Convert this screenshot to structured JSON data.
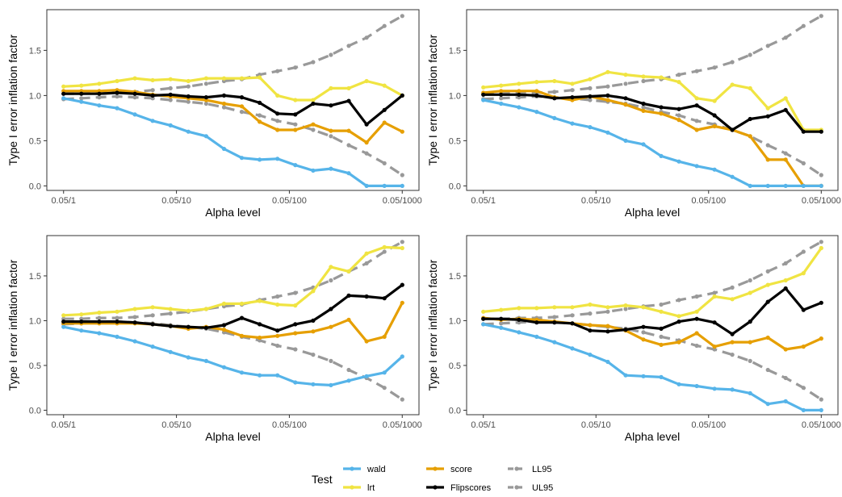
{
  "chart_data": {
    "type": "line",
    "x_tick_labels": [
      "0.05/1",
      "0.05/10",
      "0.05/100",
      "0.05/1000"
    ],
    "x_log10_divisor_range": [
      0,
      3
    ],
    "xlabel": "Alpha level",
    "ylabel": "Type I error inflation factor",
    "y_ticks": [
      "0.0",
      "0.5",
      "1.0",
      "1.5"
    ],
    "ylim": [
      -0.05,
      1.95
    ],
    "grid": false,
    "legend": {
      "title": "Test",
      "placement": "bottom",
      "entries": [
        {
          "key": "wald",
          "label": "wald",
          "color": "#56B4E9",
          "style": "solid"
        },
        {
          "key": "lrt",
          "label": "lrt",
          "color": "#F0E442",
          "style": "solid"
        },
        {
          "key": "score",
          "label": "score",
          "color": "#E69F00",
          "style": "solid"
        },
        {
          "key": "flip",
          "label": "Flipscores",
          "color": "#000000",
          "style": "solid"
        },
        {
          "key": "ll95",
          "label": "LL95",
          "color": "#999999",
          "style": "dashed"
        },
        {
          "key": "ul95",
          "label": "UL95",
          "color": "#999999",
          "style": "dashed"
        }
      ]
    },
    "panels": [
      {
        "series": {
          "wald": [
            0.97,
            0.93,
            0.89,
            0.86,
            0.79,
            0.72,
            0.67,
            0.6,
            0.55,
            0.41,
            0.31,
            0.29,
            0.3,
            0.23,
            0.17,
            0.19,
            0.14,
            0.0,
            0.0,
            0.0
          ],
          "lrt": [
            1.1,
            1.11,
            1.13,
            1.16,
            1.19,
            1.17,
            1.18,
            1.16,
            1.19,
            1.19,
            1.19,
            1.2,
            1.0,
            0.95,
            0.95,
            1.08,
            1.08,
            1.16,
            1.11,
            1.0
          ],
          "score": [
            1.05,
            1.05,
            1.05,
            1.06,
            1.04,
            1.01,
            0.99,
            0.97,
            0.95,
            0.91,
            0.88,
            0.71,
            0.62,
            0.62,
            0.68,
            0.61,
            0.61,
            0.48,
            0.7,
            0.6
          ],
          "flip": [
            1.02,
            1.02,
            1.02,
            1.03,
            1.02,
            1.0,
            1.01,
            0.99,
            0.98,
            1.0,
            0.98,
            0.92,
            0.8,
            0.79,
            0.91,
            0.89,
            0.94,
            0.68,
            0.84,
            1.0
          ],
          "ll95": [
            0.96,
            0.97,
            0.98,
            0.99,
            0.98,
            0.97,
            0.95,
            0.93,
            0.91,
            0.87,
            0.82,
            0.78,
            0.72,
            0.68,
            0.62,
            0.55,
            0.45,
            0.36,
            0.25,
            0.12
          ],
          "ul95": [
            1.02,
            1.02,
            1.03,
            1.03,
            1.04,
            1.06,
            1.08,
            1.1,
            1.13,
            1.16,
            1.18,
            1.23,
            1.27,
            1.31,
            1.37,
            1.45,
            1.55,
            1.64,
            1.77,
            1.88
          ]
        }
      },
      {
        "series": {
          "wald": [
            0.95,
            0.91,
            0.87,
            0.82,
            0.75,
            0.69,
            0.65,
            0.59,
            0.5,
            0.46,
            0.33,
            0.27,
            0.22,
            0.18,
            0.1,
            0.0,
            0.0,
            0.0,
            0.0,
            0.0
          ],
          "lrt": [
            1.09,
            1.11,
            1.13,
            1.15,
            1.16,
            1.13,
            1.18,
            1.26,
            1.23,
            1.21,
            1.2,
            1.15,
            0.97,
            0.94,
            1.12,
            1.08,
            0.86,
            0.97,
            0.62,
            0.62
          ],
          "score": [
            1.03,
            1.05,
            1.05,
            1.05,
            0.98,
            0.95,
            0.99,
            0.95,
            0.9,
            0.83,
            0.8,
            0.73,
            0.62,
            0.66,
            0.62,
            0.55,
            0.29,
            0.29,
            0.0,
            0.0
          ],
          "flip": [
            1.01,
            1.01,
            1.01,
            1.0,
            0.97,
            0.98,
            0.99,
            1.0,
            0.97,
            0.91,
            0.87,
            0.85,
            0.89,
            0.78,
            0.62,
            0.74,
            0.77,
            0.84,
            0.6,
            0.6
          ],
          "ll95": [
            0.96,
            0.97,
            0.98,
            0.99,
            0.98,
            0.97,
            0.95,
            0.93,
            0.91,
            0.87,
            0.82,
            0.78,
            0.72,
            0.68,
            0.62,
            0.55,
            0.45,
            0.36,
            0.25,
            0.12
          ],
          "ul95": [
            1.02,
            1.02,
            1.03,
            1.03,
            1.04,
            1.06,
            1.08,
            1.1,
            1.13,
            1.16,
            1.18,
            1.23,
            1.27,
            1.31,
            1.37,
            1.45,
            1.55,
            1.64,
            1.77,
            1.88
          ]
        }
      },
      {
        "series": {
          "wald": [
            0.93,
            0.89,
            0.86,
            0.82,
            0.77,
            0.71,
            0.65,
            0.59,
            0.55,
            0.48,
            0.42,
            0.39,
            0.39,
            0.31,
            0.29,
            0.28,
            0.33,
            0.38,
            0.42,
            0.6
          ],
          "lrt": [
            1.06,
            1.07,
            1.09,
            1.1,
            1.13,
            1.15,
            1.13,
            1.11,
            1.13,
            1.19,
            1.19,
            1.22,
            1.18,
            1.17,
            1.33,
            1.6,
            1.55,
            1.75,
            1.82,
            1.81
          ],
          "score": [
            0.97,
            0.97,
            0.97,
            0.97,
            0.97,
            0.96,
            0.94,
            0.91,
            0.93,
            0.9,
            0.83,
            0.81,
            0.83,
            0.86,
            0.88,
            0.93,
            1.01,
            0.77,
            0.82,
            1.2
          ],
          "flip": [
            0.99,
            0.99,
            0.99,
            0.99,
            0.98,
            0.96,
            0.94,
            0.93,
            0.92,
            0.95,
            1.03,
            0.96,
            0.89,
            0.96,
            1.0,
            1.13,
            1.28,
            1.27,
            1.25,
            1.4
          ],
          "ll95": [
            0.96,
            0.97,
            0.98,
            0.99,
            0.98,
            0.97,
            0.95,
            0.93,
            0.91,
            0.87,
            0.82,
            0.78,
            0.72,
            0.68,
            0.62,
            0.55,
            0.45,
            0.36,
            0.25,
            0.12
          ],
          "ul95": [
            1.02,
            1.02,
            1.03,
            1.03,
            1.04,
            1.06,
            1.08,
            1.1,
            1.13,
            1.16,
            1.18,
            1.23,
            1.27,
            1.31,
            1.37,
            1.45,
            1.55,
            1.64,
            1.77,
            1.88
          ]
        }
      },
      {
        "series": {
          "wald": [
            0.96,
            0.92,
            0.87,
            0.82,
            0.76,
            0.69,
            0.62,
            0.54,
            0.39,
            0.38,
            0.37,
            0.29,
            0.27,
            0.24,
            0.23,
            0.19,
            0.07,
            0.1,
            0.0,
            0.0
          ],
          "lrt": [
            1.1,
            1.12,
            1.14,
            1.14,
            1.15,
            1.15,
            1.18,
            1.15,
            1.17,
            1.15,
            1.1,
            1.05,
            1.1,
            1.27,
            1.24,
            1.31,
            1.4,
            1.45,
            1.53,
            1.81
          ],
          "score": [
            1.03,
            1.01,
            1.02,
            1.01,
            0.99,
            0.97,
            0.95,
            0.94,
            0.89,
            0.79,
            0.73,
            0.76,
            0.86,
            0.71,
            0.76,
            0.76,
            0.81,
            0.68,
            0.71,
            0.8
          ],
          "flip": [
            1.02,
            1.02,
            1.01,
            0.98,
            0.98,
            0.97,
            0.89,
            0.88,
            0.9,
            0.93,
            0.91,
            0.99,
            1.02,
            0.98,
            0.85,
            0.99,
            1.21,
            1.36,
            1.12,
            1.2
          ],
          "ll95": [
            0.96,
            0.97,
            0.98,
            0.99,
            0.98,
            0.97,
            0.95,
            0.93,
            0.91,
            0.87,
            0.82,
            0.78,
            0.72,
            0.68,
            0.62,
            0.55,
            0.45,
            0.36,
            0.25,
            0.12
          ],
          "ul95": [
            1.02,
            1.02,
            1.03,
            1.03,
            1.04,
            1.06,
            1.08,
            1.1,
            1.13,
            1.16,
            1.18,
            1.23,
            1.27,
            1.31,
            1.37,
            1.45,
            1.55,
            1.64,
            1.77,
            1.88
          ]
        }
      }
    ]
  }
}
